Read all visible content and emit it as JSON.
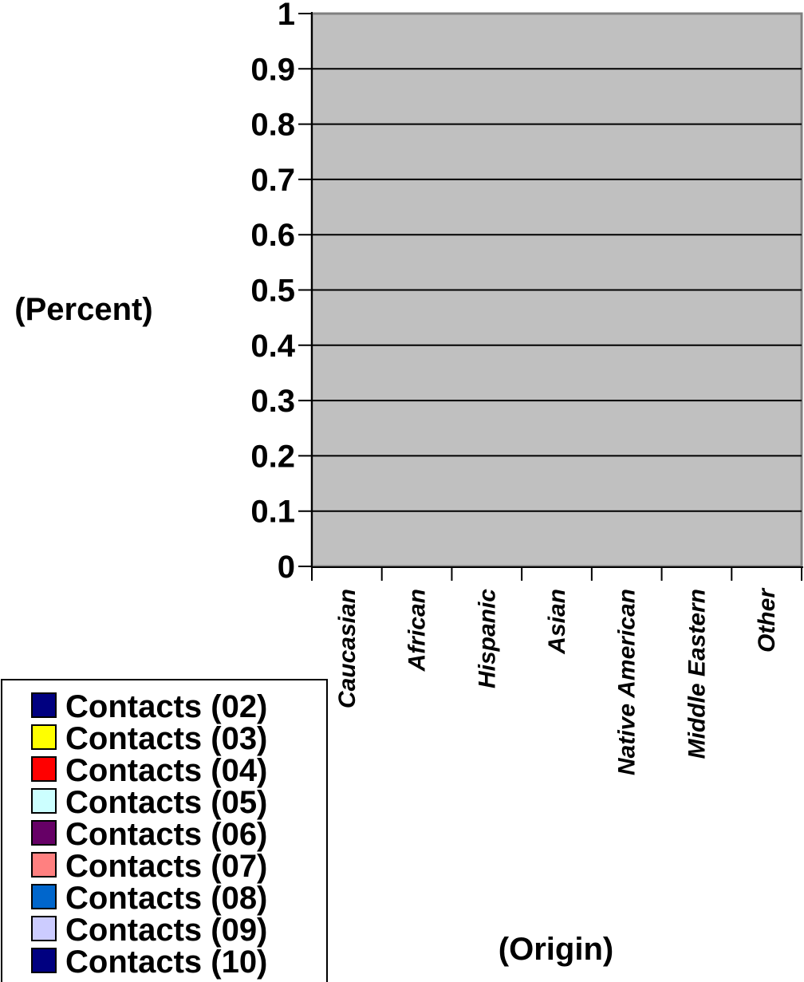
{
  "chart_data": {
    "type": "bar",
    "title": "",
    "xlabel": "(Origin)",
    "ylabel": "(Percent)",
    "ylim": [
      0,
      1
    ],
    "y_ticks": [
      "0",
      "0.1",
      "0.2",
      "0.3",
      "0.4",
      "0.5",
      "0.6",
      "0.7",
      "0.8",
      "0.9",
      "1"
    ],
    "categories": [
      "Caucasian",
      "African",
      "Hispanic",
      "Asian",
      "Native American",
      "Middle Eastern",
      "Other"
    ],
    "grid": true,
    "plot_background": "#c0c0c0",
    "legend_position": "bottom-left",
    "series": [
      {
        "name": "Contacts (02)",
        "color": "#000080",
        "values": [
          0,
          0,
          0,
          0,
          0,
          0,
          0
        ]
      },
      {
        "name": "Contacts (03)",
        "color": "#ffff00",
        "values": [
          0,
          0,
          0,
          0,
          0,
          0,
          0
        ]
      },
      {
        "name": "Contacts (04)",
        "color": "#ff0000",
        "values": [
          0,
          0,
          0,
          0,
          0,
          0,
          0
        ]
      },
      {
        "name": "Contacts (05)",
        "color": "#ccffff",
        "values": [
          0,
          0,
          0,
          0,
          0,
          0,
          0
        ]
      },
      {
        "name": "Contacts (06)",
        "color": "#660066",
        "values": [
          0,
          0,
          0,
          0,
          0,
          0,
          0
        ]
      },
      {
        "name": "Contacts (07)",
        "color": "#ff8080",
        "values": [
          0,
          0,
          0,
          0,
          0,
          0,
          0
        ]
      },
      {
        "name": "Contacts (08)",
        "color": "#0066cc",
        "values": [
          0,
          0,
          0,
          0,
          0,
          0,
          0
        ]
      },
      {
        "name": "Contacts (09)",
        "color": "#ccccff",
        "values": [
          0,
          0,
          0,
          0,
          0,
          0,
          0
        ]
      },
      {
        "name": "Contacts (10)",
        "color": "#000080",
        "values": [
          0,
          0,
          0,
          0,
          0,
          0,
          0
        ]
      }
    ]
  }
}
